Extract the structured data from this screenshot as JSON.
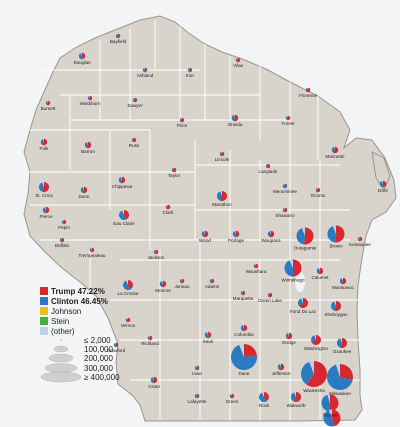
{
  "colors": {
    "trump": "#d7282f",
    "clinton": "#2a7ac1",
    "johnson": "#e3c21b",
    "stein": "#46b03a",
    "other": "#b9d1ea",
    "land": "#d8d4cc",
    "water": "#f2f4f6"
  },
  "legend": {
    "entries": [
      {
        "label": "Trump 47.22%",
        "color_key": "trump",
        "bold": true
      },
      {
        "label": "Clinton 46.45%",
        "color_key": "clinton",
        "bold": true
      },
      {
        "label": "Johnson",
        "color_key": "johnson",
        "bold": false
      },
      {
        "label": "Stein",
        "color_key": "stein",
        "bold": false
      },
      {
        "label": "(other)",
        "color_key": "other",
        "bold": false
      }
    ],
    "sizes": [
      "≤ 2,000",
      "100,000",
      "200,000",
      "300,000",
      "≥ 400,000"
    ]
  },
  "counties": [
    {
      "name": "Douglas",
      "trump": 0.41,
      "clinton": 0.53,
      "size": "s"
    },
    {
      "name": "Bayfield",
      "trump": 0.44,
      "clinton": 0.51,
      "size": "xs"
    },
    {
      "name": "Ashland",
      "trump": 0.38,
      "clinton": 0.57,
      "size": "xs"
    },
    {
      "name": "Iron",
      "trump": 0.58,
      "clinton": 0.37,
      "size": "xs"
    },
    {
      "name": "Vilas",
      "trump": 0.61,
      "clinton": 0.35,
      "size": "xs"
    },
    {
      "name": "Florence",
      "trump": 0.73,
      "clinton": 0.23,
      "size": "xs"
    },
    {
      "name": "Forest",
      "trump": 0.6,
      "clinton": 0.36,
      "size": "xs"
    },
    {
      "name": "Burnett",
      "trump": 0.64,
      "clinton": 0.31,
      "size": "xs"
    },
    {
      "name": "Washburn",
      "trump": 0.61,
      "clinton": 0.34,
      "size": "xs"
    },
    {
      "name": "Sawyer",
      "trump": 0.57,
      "clinton": 0.39,
      "size": "xs"
    },
    {
      "name": "Price",
      "trump": 0.62,
      "clinton": 0.33,
      "size": "xs"
    },
    {
      "name": "Oneida",
      "trump": 0.57,
      "clinton": 0.39,
      "size": "s"
    },
    {
      "name": "Marinette",
      "trump": 0.65,
      "clinton": 0.31,
      "size": "s"
    },
    {
      "name": "Polk",
      "trump": 0.62,
      "clinton": 0.33,
      "size": "s"
    },
    {
      "name": "Barron",
      "trump": 0.61,
      "clinton": 0.34,
      "size": "s"
    },
    {
      "name": "Rusk",
      "trump": 0.64,
      "clinton": 0.32,
      "size": "xs"
    },
    {
      "name": "Lincoln",
      "trump": 0.57,
      "clinton": 0.38,
      "size": "xs"
    },
    {
      "name": "Langlade",
      "trump": 0.65,
      "clinton": 0.31,
      "size": "xs"
    },
    {
      "name": "Taylor",
      "trump": 0.71,
      "clinton": 0.24,
      "size": "xs"
    },
    {
      "name": "Menominee",
      "trump": 0.21,
      "clinton": 0.76,
      "size": "xs"
    },
    {
      "name": "Oconto",
      "trump": 0.66,
      "clinton": 0.29,
      "size": "xs"
    },
    {
      "name": "Door",
      "trump": 0.51,
      "clinton": 0.44,
      "size": "s"
    },
    {
      "name": "St. Croix",
      "trump": 0.56,
      "clinton": 0.38,
      "size": "m"
    },
    {
      "name": "Dunn",
      "trump": 0.53,
      "clinton": 0.41,
      "size": "s"
    },
    {
      "name": "Chippewa",
      "trump": 0.56,
      "clinton": 0.38,
      "size": "s"
    },
    {
      "name": "Marathon",
      "trump": 0.56,
      "clinton": 0.38,
      "size": "m"
    },
    {
      "name": "Shawano",
      "trump": 0.63,
      "clinton": 0.32,
      "size": "xs"
    },
    {
      "name": "Pierce",
      "trump": 0.52,
      "clinton": 0.41,
      "size": "s"
    },
    {
      "name": "Pepin",
      "trump": 0.58,
      "clinton": 0.37,
      "size": "xs"
    },
    {
      "name": "Eau Claire",
      "trump": 0.43,
      "clinton": 0.5,
      "size": "m"
    },
    {
      "name": "Clark",
      "trump": 0.68,
      "clinton": 0.27,
      "size": "xs"
    },
    {
      "name": "Wood",
      "trump": 0.57,
      "clinton": 0.38,
      "size": "s"
    },
    {
      "name": "Portage",
      "trump": 0.44,
      "clinton": 0.5,
      "size": "s"
    },
    {
      "name": "Waupaca",
      "trump": 0.61,
      "clinton": 0.34,
      "size": "s"
    },
    {
      "name": "Outagamie",
      "trump": 0.52,
      "clinton": 0.42,
      "size": "l"
    },
    {
      "name": "Brown",
      "trump": 0.52,
      "clinton": 0.42,
      "size": "l"
    },
    {
      "name": "Kewaunee",
      "trump": 0.62,
      "clinton": 0.33,
      "size": "xs"
    },
    {
      "name": "Buffalo",
      "trump": 0.59,
      "clinton": 0.36,
      "size": "xs"
    },
    {
      "name": "Trempealeau",
      "trump": 0.53,
      "clinton": 0.41,
      "size": "xs"
    },
    {
      "name": "Jackson",
      "trump": 0.52,
      "clinton": 0.43,
      "size": "xs"
    },
    {
      "name": "Juneau",
      "trump": 0.6,
      "clinton": 0.34,
      "size": "xs"
    },
    {
      "name": "Adams",
      "trump": 0.59,
      "clinton": 0.37,
      "size": "xs"
    },
    {
      "name": "Waushara",
      "trump": 0.63,
      "clinton": 0.32,
      "size": "xs"
    },
    {
      "name": "Winnebago",
      "trump": 0.5,
      "clinton": 0.43,
      "size": "l"
    },
    {
      "name": "Calumet",
      "trump": 0.56,
      "clinton": 0.38,
      "size": "s"
    },
    {
      "name": "Manitowoc",
      "trump": 0.57,
      "clinton": 0.37,
      "size": "s"
    },
    {
      "name": "La Crosse",
      "trump": 0.41,
      "clinton": 0.52,
      "size": "m"
    },
    {
      "name": "Monroe",
      "trump": 0.58,
      "clinton": 0.36,
      "size": "s"
    },
    {
      "name": "Marquette",
      "trump": 0.6,
      "clinton": 0.35,
      "size": "xs"
    },
    {
      "name": "Green Lake",
      "trump": 0.66,
      "clinton": 0.3,
      "size": "xs"
    },
    {
      "name": "Fond Du Lac",
      "trump": 0.62,
      "clinton": 0.32,
      "size": "m"
    },
    {
      "name": "Sheboygan",
      "trump": 0.55,
      "clinton": 0.39,
      "size": "m"
    },
    {
      "name": "Vernon",
      "trump": 0.49,
      "clinton": 0.45,
      "size": "xs"
    },
    {
      "name": "Sauk",
      "trump": 0.46,
      "clinton": 0.48,
      "size": "s"
    },
    {
      "name": "Columbia",
      "trump": 0.48,
      "clinton": 0.46,
      "size": "s"
    },
    {
      "name": "Dodge",
      "trump": 0.63,
      "clinton": 0.31,
      "size": "s"
    },
    {
      "name": "Washington",
      "trump": 0.68,
      "clinton": 0.27,
      "size": "m"
    },
    {
      "name": "Ozaukee",
      "trump": 0.55,
      "clinton": 0.39,
      "size": "m"
    },
    {
      "name": "Crawford",
      "trump": 0.48,
      "clinton": 0.46,
      "size": "xs"
    },
    {
      "name": "Richland",
      "trump": 0.49,
      "clinton": 0.45,
      "size": "xs"
    },
    {
      "name": "Dane",
      "trump": 0.23,
      "clinton": 0.71,
      "size": "xl"
    },
    {
      "name": "Jefferson",
      "trump": 0.56,
      "clinton": 0.38,
      "size": "s"
    },
    {
      "name": "Waukesha",
      "trump": 0.6,
      "clinton": 0.34,
      "size": "xl"
    },
    {
      "name": "Milwaukee",
      "trump": 0.29,
      "clinton": 0.66,
      "size": "xl"
    },
    {
      "name": "Grant",
      "trump": 0.52,
      "clinton": 0.42,
      "size": "s"
    },
    {
      "name": "Iowa",
      "trump": 0.45,
      "clinton": 0.5,
      "size": "xs"
    },
    {
      "name": "Lafayette",
      "trump": 0.52,
      "clinton": 0.43,
      "size": "xs"
    },
    {
      "name": "Green",
      "trump": 0.47,
      "clinton": 0.47,
      "size": "xs"
    },
    {
      "name": "Rock",
      "trump": 0.41,
      "clinton": 0.52,
      "size": "m"
    },
    {
      "name": "Walworth",
      "trump": 0.58,
      "clinton": 0.36,
      "size": "m"
    },
    {
      "name": "Racine",
      "trump": 0.5,
      "clinton": 0.45,
      "size": "l"
    },
    {
      "name": "Kenosha",
      "trump": 0.47,
      "clinton": 0.47,
      "size": "l"
    }
  ]
}
